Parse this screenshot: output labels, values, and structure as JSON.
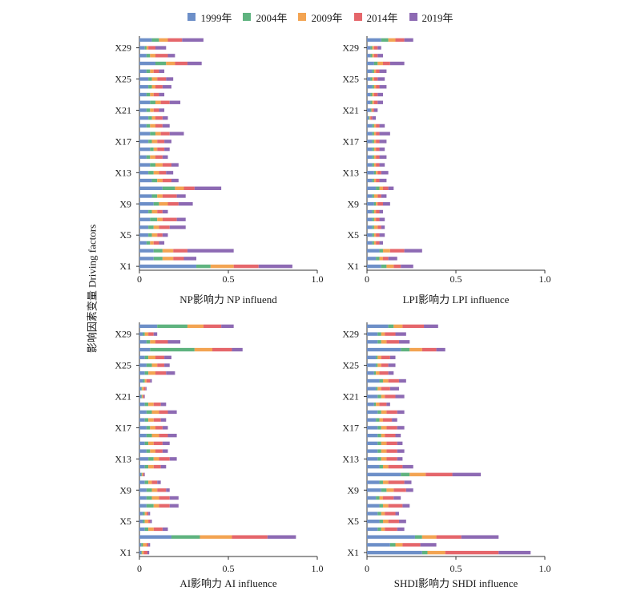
{
  "legend": {
    "items": [
      {
        "label": "1999年",
        "color": "#6d8fc8"
      },
      {
        "label": "2004年",
        "color": "#5fb37f"
      },
      {
        "label": "2009年",
        "color": "#f3a452"
      },
      {
        "label": "2014年",
        "color": "#e5666b"
      },
      {
        "label": "2019年",
        "color": "#8d6ab3"
      }
    ]
  },
  "shared": {
    "ylabel": "影响因素变量 Driving factors"
  },
  "chart_data": [
    {
      "type": "bar",
      "orientation": "horizontal",
      "stacked": true,
      "xlabel": "NP影响力 NP influend",
      "ylabel": "影响因素变量 Driving factors",
      "xlim": [
        0,
        1.0
      ],
      "xticks": [
        "0",
        "0.5",
        "1.0"
      ],
      "categories": [
        "X1",
        "X2",
        "X3",
        "X4",
        "X5",
        "X6",
        "X7",
        "X8",
        "X9",
        "X10",
        "X11",
        "X12",
        "X13",
        "X14",
        "X15",
        "X16",
        "X17",
        "X18",
        "X19",
        "X20",
        "X21",
        "X22",
        "X23",
        "X24",
        "X25",
        "X26",
        "X27",
        "X28",
        "X29",
        "X30"
      ],
      "category_tick_labels": [
        "X1",
        "X5",
        "X9",
        "X13",
        "X17",
        "X21",
        "X25",
        "X29"
      ],
      "series": [
        {
          "name": "1999年",
          "values": [
            0.32,
            0.08,
            0.08,
            0.04,
            0.05,
            0.05,
            0.06,
            0.05,
            0.08,
            0.07,
            0.13,
            0.07,
            0.05,
            0.06,
            0.04,
            0.06,
            0.05,
            0.06,
            0.04,
            0.05,
            0.04,
            0.06,
            0.04,
            0.05,
            0.05,
            0.04,
            0.09,
            0.04,
            0.03,
            0.07
          ]
        },
        {
          "name": "2004年",
          "values": [
            0.08,
            0.05,
            0.05,
            0.02,
            0.02,
            0.03,
            0.04,
            0.02,
            0.03,
            0.03,
            0.07,
            0.03,
            0.03,
            0.03,
            0.02,
            0.02,
            0.02,
            0.03,
            0.02,
            0.02,
            0.02,
            0.03,
            0.02,
            0.02,
            0.02,
            0.02,
            0.06,
            0.02,
            0.01,
            0.04
          ]
        },
        {
          "name": "2009年",
          "values": [
            0.13,
            0.06,
            0.06,
            0.02,
            0.03,
            0.03,
            0.03,
            0.03,
            0.05,
            0.03,
            0.05,
            0.03,
            0.03,
            0.04,
            0.03,
            0.02,
            0.03,
            0.03,
            0.03,
            0.02,
            0.02,
            0.03,
            0.02,
            0.02,
            0.03,
            0.02,
            0.05,
            0.03,
            0.01,
            0.05
          ]
        },
        {
          "name": "2014年",
          "values": [
            0.14,
            0.06,
            0.08,
            0.03,
            0.03,
            0.06,
            0.08,
            0.03,
            0.06,
            0.08,
            0.06,
            0.05,
            0.04,
            0.05,
            0.04,
            0.04,
            0.04,
            0.05,
            0.04,
            0.04,
            0.03,
            0.05,
            0.03,
            0.04,
            0.05,
            0.03,
            0.07,
            0.07,
            0.04,
            0.08
          ]
        },
        {
          "name": "2019年",
          "values": [
            0.19,
            0.07,
            0.26,
            0.03,
            0.03,
            0.09,
            0.05,
            0.03,
            0.08,
            0.05,
            0.15,
            0.04,
            0.04,
            0.04,
            0.03,
            0.03,
            0.04,
            0.08,
            0.04,
            0.03,
            0.03,
            0.06,
            0.03,
            0.05,
            0.04,
            0.03,
            0.08,
            0.04,
            0.06,
            0.12
          ]
        }
      ]
    },
    {
      "type": "bar",
      "orientation": "horizontal",
      "stacked": true,
      "xlabel": "LPI影响力 LPI influence",
      "xlim": [
        0,
        1.0
      ],
      "xticks": [
        "0",
        "0.5",
        "1.0"
      ],
      "categories": [
        "X1",
        "X2",
        "X3",
        "X4",
        "X5",
        "X6",
        "X7",
        "X8",
        "X9",
        "X10",
        "X11",
        "X12",
        "X13",
        "X14",
        "X15",
        "X16",
        "X17",
        "X18",
        "X19",
        "X20",
        "X21",
        "X22",
        "X23",
        "X24",
        "X25",
        "X26",
        "X27",
        "X28",
        "X29",
        "X30"
      ],
      "category_tick_labels": [
        "X1",
        "X5",
        "X9",
        "X13",
        "X17",
        "X21",
        "X25",
        "X29"
      ],
      "series": [
        {
          "name": "1999年",
          "values": [
            0.08,
            0.05,
            0.07,
            0.03,
            0.03,
            0.03,
            0.03,
            0.03,
            0.04,
            0.03,
            0.05,
            0.03,
            0.04,
            0.03,
            0.03,
            0.03,
            0.03,
            0.03,
            0.03,
            0.01,
            0.02,
            0.02,
            0.02,
            0.03,
            0.02,
            0.03,
            0.04,
            0.02,
            0.02,
            0.08
          ]
        },
        {
          "name": "2004年",
          "values": [
            0.03,
            0.02,
            0.02,
            0.01,
            0.01,
            0.01,
            0.01,
            0.01,
            0.01,
            0.01,
            0.02,
            0.01,
            0.01,
            0.01,
            0.01,
            0.01,
            0.01,
            0.01,
            0.01,
            0.005,
            0.005,
            0.01,
            0.01,
            0.01,
            0.01,
            0.01,
            0.02,
            0.01,
            0.01,
            0.04
          ]
        },
        {
          "name": "2009年",
          "values": [
            0.04,
            0.02,
            0.04,
            0.01,
            0.01,
            0.02,
            0.01,
            0.01,
            0.01,
            0.02,
            0.02,
            0.01,
            0.01,
            0.01,
            0.01,
            0.01,
            0.01,
            0.01,
            0.01,
            0.005,
            0.005,
            0.01,
            0.01,
            0.01,
            0.01,
            0.01,
            0.03,
            0.01,
            0.01,
            0.04
          ]
        },
        {
          "name": "2014年",
          "values": [
            0.04,
            0.03,
            0.08,
            0.02,
            0.02,
            0.02,
            0.02,
            0.02,
            0.03,
            0.02,
            0.03,
            0.02,
            0.02,
            0.02,
            0.02,
            0.02,
            0.02,
            0.02,
            0.02,
            0.01,
            0.01,
            0.02,
            0.02,
            0.02,
            0.02,
            0.02,
            0.04,
            0.02,
            0.02,
            0.05
          ]
        },
        {
          "name": "2019年",
          "values": [
            0.07,
            0.05,
            0.1,
            0.02,
            0.03,
            0.02,
            0.03,
            0.02,
            0.04,
            0.03,
            0.03,
            0.04,
            0.04,
            0.03,
            0.04,
            0.03,
            0.04,
            0.06,
            0.03,
            0.02,
            0.02,
            0.03,
            0.03,
            0.04,
            0.04,
            0.04,
            0.08,
            0.03,
            0.02,
            0.05
          ]
        }
      ]
    },
    {
      "type": "bar",
      "orientation": "horizontal",
      "stacked": true,
      "xlabel": "AI影响力 AI influence",
      "xlim": [
        0,
        1.0
      ],
      "xticks": [
        "0",
        "0.5",
        "1.0"
      ],
      "categories": [
        "X1",
        "X2",
        "X3",
        "X4",
        "X5",
        "X6",
        "X7",
        "X8",
        "X9",
        "X10",
        "X11",
        "X12",
        "X13",
        "X14",
        "X15",
        "X16",
        "X17",
        "X18",
        "X19",
        "X20",
        "X21",
        "X22",
        "X23",
        "X24",
        "X25",
        "X26",
        "X27",
        "X28",
        "X29",
        "X30"
      ],
      "category_tick_labels": [
        "X1",
        "X5",
        "X9",
        "X13",
        "X17",
        "X21",
        "X25",
        "X29"
      ],
      "series": [
        {
          "name": "1999年",
          "values": [
            0.01,
            0.01,
            0.18,
            0.03,
            0.02,
            0.02,
            0.04,
            0.04,
            0.04,
            0.03,
            0.01,
            0.03,
            0.05,
            0.04,
            0.03,
            0.04,
            0.04,
            0.03,
            0.04,
            0.03,
            0.01,
            0.01,
            0.02,
            0.03,
            0.04,
            0.03,
            0.06,
            0.04,
            0.02,
            0.1
          ]
        },
        {
          "name": "2004年",
          "values": [
            0.005,
            0.01,
            0.16,
            0.02,
            0.01,
            0.01,
            0.04,
            0.03,
            0.03,
            0.02,
            0.005,
            0.02,
            0.03,
            0.02,
            0.02,
            0.03,
            0.02,
            0.02,
            0.03,
            0.02,
            0.005,
            0.005,
            0.01,
            0.02,
            0.03,
            0.02,
            0.25,
            0.02,
            0.01,
            0.17
          ]
        },
        {
          "name": "2009年",
          "values": [
            0.01,
            0.02,
            0.18,
            0.03,
            0.02,
            0.01,
            0.03,
            0.04,
            0.03,
            0.02,
            0.005,
            0.03,
            0.03,
            0.03,
            0.03,
            0.04,
            0.03,
            0.03,
            0.04,
            0.03,
            0.005,
            0.01,
            0.01,
            0.04,
            0.03,
            0.04,
            0.1,
            0.03,
            0.02,
            0.09
          ]
        },
        {
          "name": "2014年",
          "values": [
            0.02,
            0.01,
            0.2,
            0.05,
            0.01,
            0.01,
            0.06,
            0.06,
            0.05,
            0.03,
            0.005,
            0.04,
            0.06,
            0.04,
            0.05,
            0.05,
            0.04,
            0.04,
            0.05,
            0.04,
            0.005,
            0.01,
            0.02,
            0.06,
            0.04,
            0.05,
            0.11,
            0.07,
            0.03,
            0.1
          ]
        },
        {
          "name": "2019年",
          "values": [
            0.01,
            0.01,
            0.16,
            0.03,
            0.01,
            0.01,
            0.05,
            0.05,
            0.02,
            0.02,
            0.005,
            0.03,
            0.04,
            0.03,
            0.04,
            0.05,
            0.03,
            0.03,
            0.05,
            0.03,
            0.005,
            0.005,
            0.01,
            0.05,
            0.03,
            0.04,
            0.06,
            0.07,
            0.02,
            0.07
          ]
        }
      ]
    },
    {
      "type": "bar",
      "orientation": "horizontal",
      "stacked": true,
      "xlabel": "SHDI影响力 SHDI influence",
      "xlim": [
        0,
        1.0
      ],
      "xticks": [
        "0",
        "0.5",
        "1.0"
      ],
      "categories": [
        "X1",
        "X2",
        "X3",
        "X4",
        "X5",
        "X6",
        "X7",
        "X8",
        "X9",
        "X10",
        "X11",
        "X12",
        "X13",
        "X14",
        "X15",
        "X16",
        "X17",
        "X18",
        "X19",
        "X20",
        "X21",
        "X22",
        "X23",
        "X24",
        "X25",
        "X26",
        "X27",
        "X28",
        "X29",
        "X30"
      ],
      "category_tick_labels": [
        "X1",
        "X5",
        "X9",
        "X13",
        "X17",
        "X21",
        "X25",
        "X29"
      ],
      "series": [
        {
          "name": "1999年",
          "values": [
            0.31,
            0.13,
            0.27,
            0.06,
            0.07,
            0.06,
            0.07,
            0.05,
            0.08,
            0.07,
            0.19,
            0.07,
            0.06,
            0.06,
            0.06,
            0.06,
            0.06,
            0.05,
            0.06,
            0.04,
            0.06,
            0.05,
            0.07,
            0.04,
            0.05,
            0.05,
            0.19,
            0.06,
            0.06,
            0.12
          ]
        },
        {
          "name": "2004年",
          "values": [
            0.03,
            0.03,
            0.04,
            0.02,
            0.02,
            0.02,
            0.02,
            0.02,
            0.03,
            0.02,
            0.05,
            0.02,
            0.02,
            0.02,
            0.02,
            0.02,
            0.02,
            0.02,
            0.02,
            0.01,
            0.02,
            0.01,
            0.02,
            0.01,
            0.01,
            0.01,
            0.05,
            0.02,
            0.02,
            0.03
          ]
        },
        {
          "name": "2009年",
          "values": [
            0.1,
            0.04,
            0.08,
            0.02,
            0.03,
            0.02,
            0.03,
            0.02,
            0.04,
            0.03,
            0.09,
            0.03,
            0.03,
            0.03,
            0.03,
            0.02,
            0.03,
            0.02,
            0.03,
            0.02,
            0.02,
            0.02,
            0.03,
            0.02,
            0.02,
            0.02,
            0.07,
            0.03,
            0.02,
            0.05
          ]
        },
        {
          "name": "2014年",
          "values": [
            0.3,
            0.1,
            0.14,
            0.07,
            0.06,
            0.06,
            0.08,
            0.06,
            0.07,
            0.09,
            0.15,
            0.08,
            0.06,
            0.06,
            0.06,
            0.06,
            0.06,
            0.05,
            0.06,
            0.04,
            0.06,
            0.05,
            0.06,
            0.05,
            0.04,
            0.05,
            0.08,
            0.07,
            0.06,
            0.12
          ]
        },
        {
          "name": "2019年",
          "values": [
            0.18,
            0.09,
            0.21,
            0.04,
            0.04,
            0.02,
            0.04,
            0.04,
            0.04,
            0.04,
            0.16,
            0.06,
            0.03,
            0.04,
            0.03,
            0.03,
            0.04,
            0.03,
            0.04,
            0.02,
            0.05,
            0.05,
            0.04,
            0.03,
            0.04,
            0.03,
            0.05,
            0.06,
            0.06,
            0.08
          ]
        }
      ]
    }
  ]
}
